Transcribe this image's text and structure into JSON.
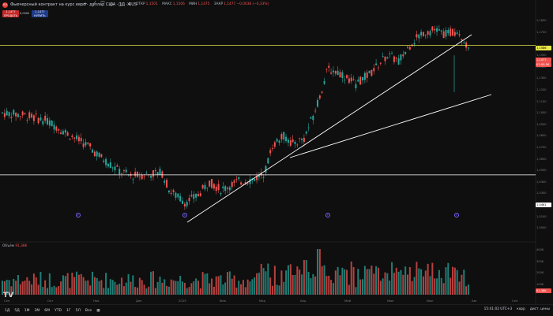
{
  "header": {
    "title": "Фьючерсный контракт на курс евро - доллар США · 1Д · RUS",
    "symbol_icon": "EU",
    "ohlc": [
      {
        "label": "ОТКР",
        "value": "1,1501"
      },
      {
        "label": "МАКС",
        "value": "1,1506"
      },
      {
        "label": "МИН",
        "value": "1,1475"
      },
      {
        "label": "ЗАКР",
        "value": "1,1477 −0,0038 (−0,33%)"
      }
    ]
  },
  "trade": {
    "sell_price": "1,1477",
    "sell_label": "ПРОДАТЬ",
    "spread": "0,0000",
    "buy_price": "1,1477",
    "buy_label": "КУПИТЬ"
  },
  "price_axis": {
    "labels": [
      "1,1800",
      "1,1700",
      "1,1500",
      "1,1400",
      "1,1300",
      "1,1200",
      "1,1100",
      "1,1000",
      "1,0900",
      "1,0800",
      "1,0700",
      "1,0600",
      "1,0500",
      "1,0400",
      "1,0300",
      "1,0200",
      "1,0100",
      "1,0000"
    ],
    "yellow_tag": "1,1586",
    "current_tag": "1,1477",
    "countdown_tag": "01:05:56",
    "white_tag": "1,0461"
  },
  "volume_axis": {
    "labels": [
      "400K",
      "300K",
      "200K",
      "100K"
    ],
    "current_tag": "91,38K"
  },
  "volume_label": {
    "label": "Объём",
    "value": "91,38K"
  },
  "time_axis": [
    "Сен",
    "Окт",
    "Ноя",
    "Дек",
    "2025",
    "Фев",
    "Мар",
    "Апр",
    "Май",
    "Июн",
    "Июл",
    "Авг",
    "Сен"
  ],
  "bottom_bar": {
    "timeframes": [
      "1Д",
      "5Д",
      "1М",
      "3М",
      "6М",
      "YTD",
      "1Г",
      "5Л",
      "Все"
    ],
    "clock": "15:41:02 UTC+3",
    "corr": "корр",
    "scale": "дист. цены"
  },
  "colors": {
    "up": "#26a69a",
    "down": "#ef5350",
    "hline_yellow": "#e8e84a",
    "hline_white": "#ffffff",
    "event": "#7b61ff"
  },
  "chart_data": {
    "type": "candlestick",
    "hlines": [
      1.1586,
      1.0461
    ],
    "trendlines": [
      {
        "from": [
          "2024-12-10",
          1.011
        ],
        "to": [
          "2025-07-05",
          1.17
        ]
      },
      {
        "from": [
          "2025-03-18",
          1.064
        ],
        "to": [
          "2025-08-10",
          1.118
        ]
      }
    ],
    "volume_ylim": [
      0,
      400000
    ]
  }
}
